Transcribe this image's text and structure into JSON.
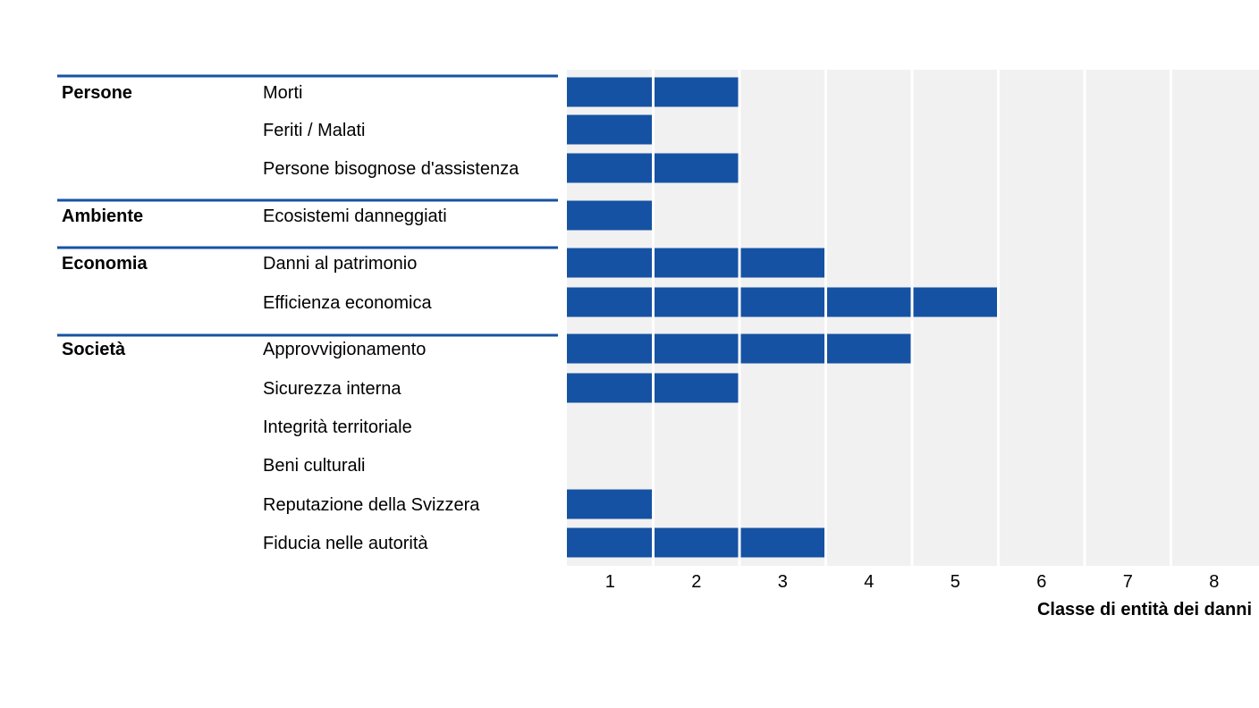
{
  "chart_data": {
    "type": "bar",
    "orientation": "horizontal",
    "xlabel": "Classe di entità dei danni",
    "xlim": [
      0.5,
      8.5
    ],
    "x_ticks": [
      "1",
      "2",
      "3",
      "4",
      "5",
      "6",
      "7",
      "8"
    ],
    "grid": true,
    "groups": [
      {
        "name": "Persone",
        "rows": [
          {
            "label": "Morti",
            "value": 2
          },
          {
            "label": "Feriti / Malati",
            "value": 1
          },
          {
            "label": "Persone bisognose d'assistenza",
            "value": 2
          }
        ]
      },
      {
        "name": "Ambiente",
        "rows": [
          {
            "label": "Ecosistemi danneggiati",
            "value": 1
          }
        ]
      },
      {
        "name": "Economia",
        "rows": [
          {
            "label": "Danni al patrimonio",
            "value": 3
          },
          {
            "label": "Efficienza economica",
            "value": 5
          }
        ]
      },
      {
        "name": "Società",
        "rows": [
          {
            "label": "Approvvigionamento",
            "value": 4
          },
          {
            "label": "Sicurezza interna",
            "value": 2
          },
          {
            "label": "Integrità territoriale",
            "value": 0
          },
          {
            "label": "Beni culturali",
            "value": 0
          },
          {
            "label": "Reputazione della Svizzera",
            "value": 1
          },
          {
            "label": "Fiducia nelle autorità",
            "value": 3
          }
        ]
      }
    ],
    "colors": {
      "bar": "#1652a3",
      "separator": "#1652a3",
      "plot_background": "#f1f1f1",
      "grid": "#ffffff"
    }
  }
}
